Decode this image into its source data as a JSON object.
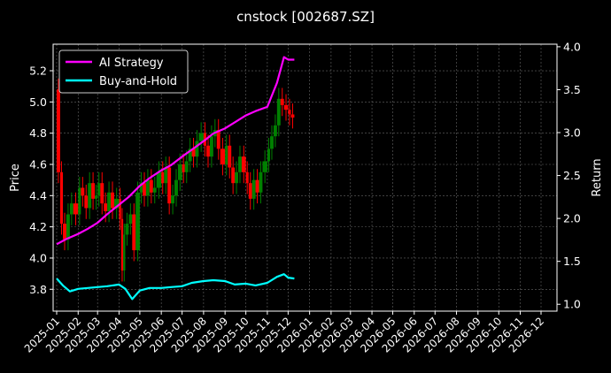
{
  "chart_data": {
    "type": "line",
    "title": "cnstock [002687.SZ]",
    "ylabel_left": "Price",
    "ylabel_right": "Return",
    "ylim_left": [
      3.66,
      5.37
    ],
    "ylim_right": [
      0.92,
      4.03
    ],
    "left_ticks": [
      "3.8",
      "4.0",
      "4.2",
      "4.4",
      "4.6",
      "4.8",
      "5.0",
      "5.2"
    ],
    "right_ticks": [
      "1.0",
      "1.5",
      "2.0",
      "2.5",
      "3.0",
      "3.5",
      "4.0"
    ],
    "x_ticks": [
      "2025-01",
      "2025-02",
      "2025-03",
      "2025-04",
      "2025-05",
      "2025-06",
      "2025-07",
      "2025-08",
      "2025-09",
      "2025-10",
      "2025-11",
      "2025-12",
      "2026-01",
      "2026-02",
      "2026-03",
      "2026-04",
      "2026-05",
      "2026-06",
      "2026-07",
      "2026-08",
      "2026-09",
      "2026-10",
      "2026-11",
      "2026-12"
    ],
    "grid": true,
    "legend_position": "top-left",
    "background": "#000000",
    "price_candles": {
      "up_color": "#008000",
      "down_color": "#ff0000",
      "x": [
        "2025-01-01",
        "2025-01-06",
        "2025-01-10",
        "2025-01-15",
        "2025-01-20",
        "2025-01-25",
        "2025-02-01",
        "2025-02-05",
        "2025-02-10",
        "2025-02-15",
        "2025-02-20",
        "2025-02-25",
        "2025-03-01",
        "2025-03-05",
        "2025-03-10",
        "2025-03-15",
        "2025-03-20",
        "2025-03-25",
        "2025-04-01",
        "2025-04-04",
        "2025-04-07",
        "2025-04-10",
        "2025-04-15",
        "2025-04-20",
        "2025-04-25",
        "2025-05-01",
        "2025-05-05",
        "2025-05-10",
        "2025-05-15",
        "2025-05-20",
        "2025-05-25",
        "2025-06-01",
        "2025-06-05",
        "2025-06-10",
        "2025-06-15",
        "2025-06-20",
        "2025-06-25",
        "2025-07-01",
        "2025-07-05",
        "2025-07-10",
        "2025-07-15",
        "2025-07-20",
        "2025-07-25",
        "2025-08-01",
        "2025-08-05",
        "2025-08-10",
        "2025-08-15",
        "2025-08-20",
        "2025-08-25",
        "2025-09-01",
        "2025-09-05",
        "2025-09-10",
        "2025-09-15",
        "2025-09-20",
        "2025-09-25",
        "2025-10-01",
        "2025-10-05",
        "2025-10-10",
        "2025-10-15",
        "2025-10-20",
        "2025-10-25",
        "2025-11-01",
        "2025-11-05",
        "2025-11-10",
        "2025-11-15",
        "2025-11-20",
        "2025-11-25",
        "2025-12-01",
        "2025-12-05",
        "2025-12-10"
      ],
      "values": [
        5.08,
        4.55,
        4.22,
        4.12,
        4.28,
        4.35,
        4.28,
        4.45,
        4.4,
        4.32,
        4.48,
        4.38,
        4.4,
        4.48,
        4.35,
        4.3,
        4.42,
        4.32,
        4.38,
        4.25,
        3.92,
        4.15,
        4.22,
        4.28,
        4.05,
        4.42,
        4.48,
        4.4,
        4.5,
        4.42,
        4.45,
        4.55,
        4.48,
        4.58,
        4.35,
        4.4,
        4.5,
        4.6,
        4.55,
        4.62,
        4.7,
        4.65,
        4.75,
        4.8,
        4.72,
        4.65,
        4.78,
        4.82,
        4.7,
        4.6,
        4.72,
        4.58,
        4.48,
        4.55,
        4.65,
        4.55,
        4.48,
        4.38,
        4.5,
        4.42,
        4.55,
        4.62,
        4.7,
        4.78,
        4.85,
        5.02,
        4.98,
        4.95,
        4.92,
        4.9
      ]
    },
    "series": [
      {
        "name": "AI Strategy",
        "color": "#ff00ff",
        "axis": "right",
        "x": [
          "2025-01-01",
          "2025-01-15",
          "2025-02-01",
          "2025-02-15",
          "2025-03-01",
          "2025-03-15",
          "2025-04-01",
          "2025-04-15",
          "2025-05-01",
          "2025-05-15",
          "2025-06-01",
          "2025-06-15",
          "2025-07-01",
          "2025-07-15",
          "2025-08-01",
          "2025-08-15",
          "2025-09-01",
          "2025-09-15",
          "2025-10-01",
          "2025-10-15",
          "2025-11-01",
          "2025-11-15",
          "2025-11-25",
          "2025-12-01",
          "2025-12-10"
        ],
        "values": [
          1.7,
          1.76,
          1.82,
          1.88,
          1.95,
          2.05,
          2.16,
          2.25,
          2.38,
          2.47,
          2.56,
          2.62,
          2.72,
          2.8,
          2.9,
          2.99,
          3.05,
          3.12,
          3.2,
          3.25,
          3.3,
          3.58,
          3.88,
          3.85,
          3.85
        ]
      },
      {
        "name": "Buy-and-Hold",
        "color": "#00ffff",
        "axis": "right",
        "x": [
          "2025-01-01",
          "2025-01-10",
          "2025-01-20",
          "2025-02-01",
          "2025-02-15",
          "2025-03-01",
          "2025-03-15",
          "2025-04-01",
          "2025-04-10",
          "2025-04-20",
          "2025-05-01",
          "2025-05-15",
          "2025-06-01",
          "2025-06-15",
          "2025-07-01",
          "2025-07-15",
          "2025-08-01",
          "2025-08-15",
          "2025-09-01",
          "2025-09-15",
          "2025-10-01",
          "2025-10-15",
          "2025-11-01",
          "2025-11-15",
          "2025-11-25",
          "2025-12-01",
          "2025-12-10"
        ],
        "values": [
          1.3,
          1.22,
          1.15,
          1.18,
          1.19,
          1.2,
          1.21,
          1.23,
          1.18,
          1.06,
          1.16,
          1.19,
          1.19,
          1.2,
          1.21,
          1.25,
          1.27,
          1.28,
          1.27,
          1.23,
          1.24,
          1.22,
          1.25,
          1.32,
          1.35,
          1.31,
          1.3
        ]
      }
    ]
  }
}
